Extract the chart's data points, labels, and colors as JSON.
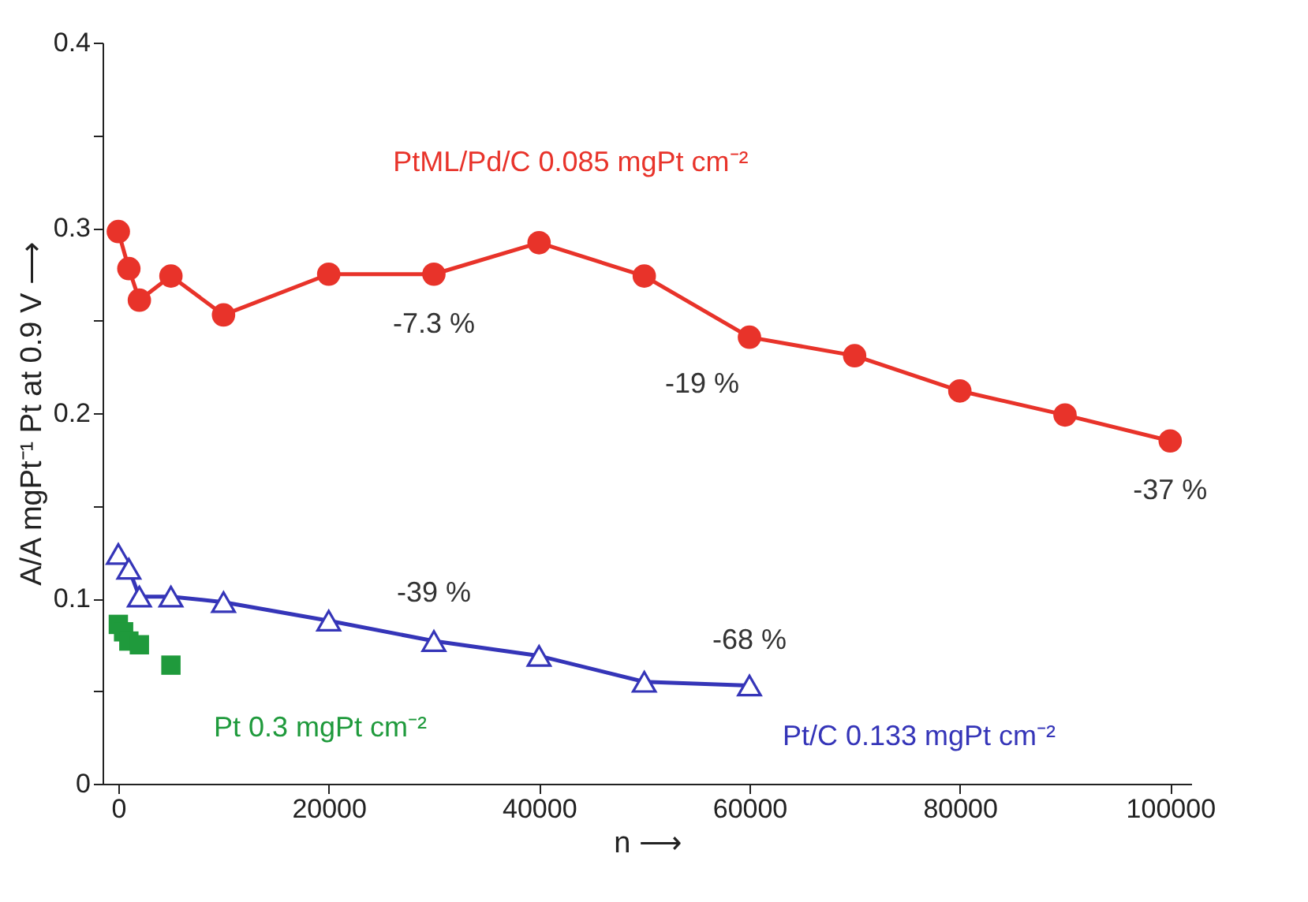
{
  "chart_data": {
    "type": "line",
    "xlabel": "n ⟶",
    "ylabel": "A/A mgPt⁻¹ Pt at 0.9 V ⟶",
    "xlim": [
      -1500,
      102000
    ],
    "xticks": [
      0,
      20000,
      40000,
      60000,
      80000,
      100000
    ],
    "ylim": [
      0,
      0.4
    ],
    "yticks": [
      0,
      {
        "value": 0.05,
        "label": null
      },
      0.1,
      {
        "value": 0.15,
        "label": null
      },
      0.2,
      {
        "value": 0.25,
        "label": null
      },
      0.3,
      {
        "value": 0.35,
        "label": null
      },
      0.4
    ],
    "grid": false,
    "legend": false,
    "series": [
      {
        "name": "PtML/Pd/C  0.085 mgPt cm⁻²",
        "color": "#e8332a",
        "marker": "circle",
        "x": [
          0,
          1000,
          2000,
          5000,
          10000,
          20000,
          30000,
          40000,
          50000,
          60000,
          70000,
          80000,
          90000,
          100000
        ],
        "values": [
          0.298,
          0.278,
          0.261,
          0.274,
          0.253,
          0.275,
          0.275,
          0.292,
          0.274,
          0.241,
          0.231,
          0.212,
          0.199,
          0.185
        ]
      },
      {
        "name": "Pt/C  0.133 mgPt cm⁻²",
        "color": "#3535b8",
        "marker": "triangle",
        "x": [
          0,
          1000,
          2000,
          5000,
          10000,
          20000,
          30000,
          40000,
          50000,
          60000
        ],
        "values": [
          0.124,
          0.116,
          0.101,
          0.101,
          0.098,
          0.088,
          0.077,
          0.069,
          0.055,
          0.053
        ]
      },
      {
        "name": "Pt 0.3 mgPt cm⁻²",
        "type": "scatter",
        "color": "#1f9a3c",
        "marker": "square",
        "x": [
          0,
          500,
          1000,
          2000,
          5000
        ],
        "values": [
          0.086,
          0.082,
          0.077,
          0.075,
          0.064
        ]
      }
    ],
    "annotations": [
      {
        "text": "-7.3 %",
        "x": 30000,
        "y": 0.275
      },
      {
        "text": "-19 %",
        "x": 60000,
        "y": 0.241
      },
      {
        "text": "-37 %",
        "x": 100000,
        "y": 0.185
      },
      {
        "text": "-39 %",
        "x": 30000,
        "y": 0.077
      },
      {
        "text": "-68 %",
        "x": 60000,
        "y": 0.053
      }
    ]
  }
}
